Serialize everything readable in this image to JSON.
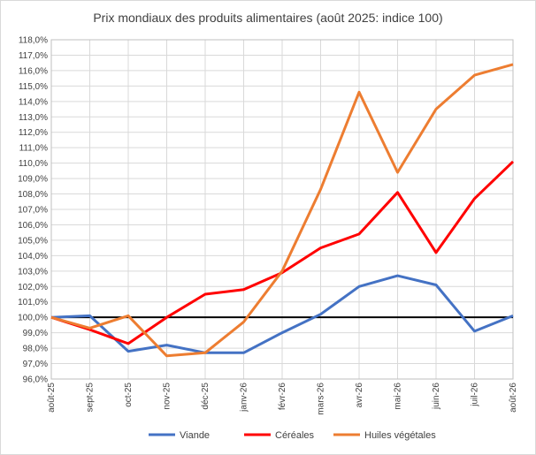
{
  "chart_data": {
    "type": "line",
    "title": "Prix mondiaux des produits alimentaires (août 2025: indice 100)",
    "xlabel": "",
    "ylabel": "",
    "ylim": [
      96,
      118
    ],
    "y_step": 1,
    "y_tick_labels": [
      "96,0%",
      "97,0%",
      "98,0%",
      "99,0%",
      "100,0%",
      "101,0%",
      "102,0%",
      "103,0%",
      "104,0%",
      "105,0%",
      "106,0%",
      "107,0%",
      "108,0%",
      "109,0%",
      "110,0%",
      "111,0%",
      "112,0%",
      "113,0%",
      "114,0%",
      "115,0%",
      "116,0%",
      "117,0%",
      "118,0%"
    ],
    "reference_line": 100,
    "grid": true,
    "legend_position": "bottom",
    "categories": [
      "août-25",
      "sept-25",
      "oct-25",
      "nov-25",
      "déc-25",
      "janv-26",
      "févr-26",
      "mars-26",
      "avr-26",
      "mai-26",
      "juin-26",
      "juil-26",
      "août-26"
    ],
    "series": [
      {
        "name": "Viande",
        "color": "#4472c4",
        "values": [
          100.0,
          100.1,
          97.8,
          98.2,
          97.7,
          97.7,
          99.0,
          100.2,
          102.0,
          102.7,
          102.1,
          99.1,
          100.1
        ]
      },
      {
        "name": "Céréales",
        "color": "#ff0000",
        "values": [
          100.0,
          99.2,
          98.3,
          100.0,
          101.5,
          101.8,
          102.9,
          104.5,
          105.4,
          108.1,
          104.2,
          107.7,
          110.1
        ]
      },
      {
        "name": "Huiles végétales",
        "color": "#ed7d31",
        "values": [
          100.0,
          99.3,
          100.1,
          97.5,
          97.7,
          99.7,
          103.0,
          108.3,
          114.6,
          109.4,
          113.5,
          115.7,
          116.4
        ]
      }
    ]
  }
}
